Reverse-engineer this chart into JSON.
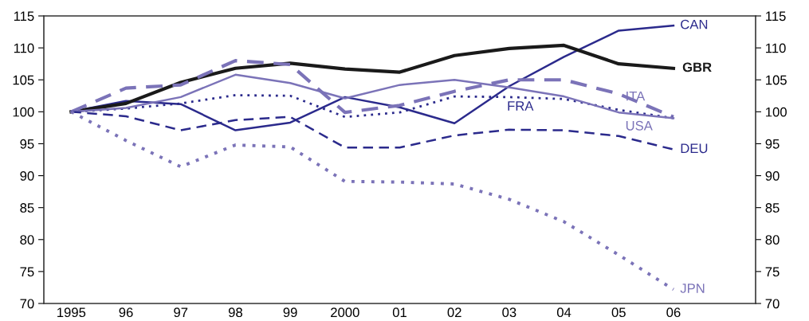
{
  "chart_data": {
    "type": "line",
    "categories": [
      "1995",
      "96",
      "97",
      "98",
      "99",
      "2000",
      "01",
      "02",
      "03",
      "04",
      "05",
      "06",
      null
    ],
    "ylim": [
      70,
      115
    ],
    "yticks": [
      70,
      75,
      80,
      85,
      90,
      95,
      100,
      105,
      110,
      115
    ],
    "y2lim": [
      70,
      115
    ],
    "y2ticks": [
      70,
      75,
      80,
      85,
      90,
      95,
      100,
      105,
      110,
      115
    ],
    "grid": false,
    "legend": false,
    "marker": "none",
    "series": [
      {
        "name": "CAN",
        "color": "#2b2a8c",
        "line_style": "solid",
        "values": [
          100,
          101.7,
          101.2,
          97.1,
          98.3,
          102.3,
          100.7,
          98.2,
          104.0,
          108.6,
          112.7,
          113.5,
          null
        ]
      },
      {
        "name": "GBR",
        "color": "#1a1a1a",
        "line_style": "solid",
        "values": [
          100,
          101.3,
          104.6,
          106.8,
          107.6,
          106.7,
          106.2,
          108.8,
          109.9,
          110.4,
          107.5,
          106.8,
          null
        ]
      },
      {
        "name": "ITA",
        "color": "#7b73b8",
        "line_style": "dashed",
        "values": [
          100,
          103.7,
          104.2,
          108.0,
          107.4,
          99.9,
          101.0,
          103.2,
          105.0,
          105.0,
          102.8,
          99.2,
          null
        ]
      },
      {
        "name": "FRA",
        "color": "#2b2a8c",
        "line_style": "dotted",
        "values": [
          100,
          100.5,
          101.3,
          102.6,
          102.5,
          99.2,
          99.9,
          102.4,
          102.3,
          102.0,
          100.3,
          99.0,
          null
        ]
      },
      {
        "name": "USA",
        "color": "#7b73b8",
        "line_style": "solid",
        "values": [
          100,
          100.6,
          102.3,
          105.8,
          104.5,
          102.1,
          104.2,
          105.0,
          103.8,
          102.4,
          99.9,
          99.0,
          null
        ]
      },
      {
        "name": "DEU",
        "color": "#2b2a8c",
        "line_style": "dashed",
        "values": [
          100,
          99.3,
          97.1,
          98.7,
          99.2,
          94.4,
          94.4,
          96.3,
          97.2,
          97.1,
          96.2,
          94.1,
          null
        ]
      },
      {
        "name": "JPN",
        "color": "#7b73b8",
        "line_style": "dotted",
        "values": [
          100,
          95.5,
          91.4,
          94.8,
          94.5,
          89.1,
          89.0,
          88.7,
          86.3,
          82.8,
          77.6,
          72.2,
          null
        ]
      }
    ]
  }
}
